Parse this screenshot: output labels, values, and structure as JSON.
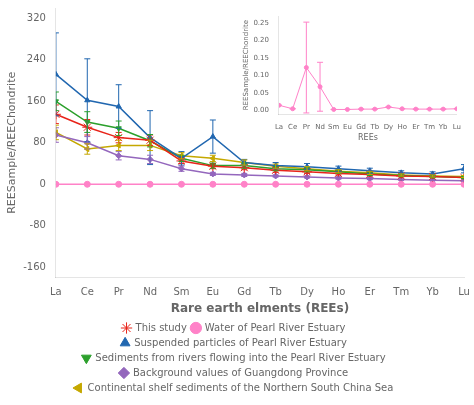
{
  "chart_data": [
    {
      "type": "line",
      "xlabel": "Rare earth elments (REEs)",
      "ylabel": "REESample/REEChondrite",
      "categories": [
        "La",
        "Ce",
        "Pr",
        "Nd",
        "Sm",
        "Eu",
        "Gd",
        "Tb",
        "Dy",
        "Ho",
        "Er",
        "Tm",
        "Yb",
        "Lu"
      ],
      "series": [
        {
          "name": "This study",
          "color": "#e8241a",
          "marker": "star",
          "values": [
            135,
            110,
            90,
            85,
            45,
            35,
            32,
            27,
            24,
            21,
            19,
            16,
            15,
            13
          ],
          "errors": [
            18,
            15,
            10,
            10,
            5,
            5,
            4,
            4,
            3,
            3,
            3,
            2,
            2,
            2
          ]
        },
        {
          "name": "Water of Pearl River Estuary",
          "color": "#ff82c8",
          "marker": "circle",
          "values": [
            0,
            0,
            0,
            0,
            0,
            0,
            0,
            0,
            0,
            0,
            0,
            0,
            0,
            0
          ],
          "errors": [
            0,
            0,
            0,
            0,
            0,
            0,
            0,
            0,
            0,
            0,
            0,
            0,
            0,
            0
          ]
        },
        {
          "name": "Suspended particles of Pearl River Estuary",
          "color": "#2167b0",
          "marker": "triangle_up",
          "values": [
            212,
            162,
            150,
            90,
            50,
            92,
            42,
            36,
            34,
            30,
            26,
            22,
            20,
            30
          ],
          "errors": [
            80,
            80,
            42,
            52,
            13,
            32,
            6,
            6,
            6,
            5,
            5,
            4,
            4,
            8
          ]
        },
        {
          "name": "Sediments from rivers flowing into the Pearl River Estuary",
          "color": "#2ca02c",
          "marker": "triangle_down",
          "values": [
            160,
            120,
            108,
            84,
            50,
            36,
            36,
            30,
            28,
            24,
            20,
            17,
            15,
            13
          ],
          "errors": [
            18,
            20,
            14,
            12,
            6,
            5,
            5,
            4,
            4,
            3,
            3,
            2,
            2,
            2
          ]
        },
        {
          "name": "Background values of Guangdong Province",
          "color": "#9467bd",
          "marker": "diamond",
          "values": [
            95,
            80,
            55,
            48,
            30,
            20,
            18,
            16,
            14,
            12,
            11,
            9,
            8,
            7
          ],
          "errors": [
            14,
            12,
            8,
            8,
            5,
            3,
            3,
            2,
            2,
            2,
            2,
            1,
            1,
            1
          ]
        },
        {
          "name": "Continental shelf sediments of the Northern South China Sea",
          "color": "#c5a800",
          "marker": "triangle_left",
          "values": [
            100,
            68,
            75,
            75,
            55,
            50,
            42,
            35,
            30,
            25,
            22,
            18,
            16,
            15
          ],
          "errors": [
            14,
            10,
            10,
            10,
            6,
            6,
            5,
            4,
            4,
            3,
            3,
            2,
            2,
            2
          ]
        }
      ],
      "ylim": [
        -180,
        340
      ],
      "yticks": [
        -160,
        -80,
        0,
        80,
        160,
        240,
        320
      ],
      "grid": false,
      "legend": "bottom"
    },
    {
      "type": "line",
      "xlabel": "REEs",
      "ylabel": "REESample/REEChondrite",
      "categories": [
        "La",
        "Ce",
        "Pr",
        "Nd",
        "Sm",
        "Eu",
        "Gd",
        "Tb",
        "Dy",
        "Ho",
        "Er",
        "Tm",
        "Yb",
        "Lu"
      ],
      "values": [
        0.015,
        0.005,
        0.123,
        0.068,
        0.003,
        0.003,
        0.004,
        0.004,
        0.01,
        0.005,
        0.004,
        0.004,
        0.004,
        0.005
      ],
      "errors": [
        0.0,
        0.0,
        0.13,
        0.07,
        0.0,
        0.0,
        0.0,
        0.0,
        0.0,
        0.0,
        0.0,
        0.0,
        0.0,
        0.0
      ],
      "color": "#ff82c8",
      "marker": "circle",
      "ylim": [
        -0.01,
        0.27
      ],
      "yticks": [
        {
          "value": 0.0,
          "label": "0.00"
        },
        {
          "value": 0.05,
          "label": "0.05"
        },
        {
          "value": 0.1,
          "label": "0.10"
        },
        {
          "value": 0.15,
          "label": "0.15"
        },
        {
          "value": 0.2,
          "label": "0.20"
        },
        {
          "value": 0.25,
          "label": "0.25"
        }
      ],
      "grid": false
    }
  ]
}
